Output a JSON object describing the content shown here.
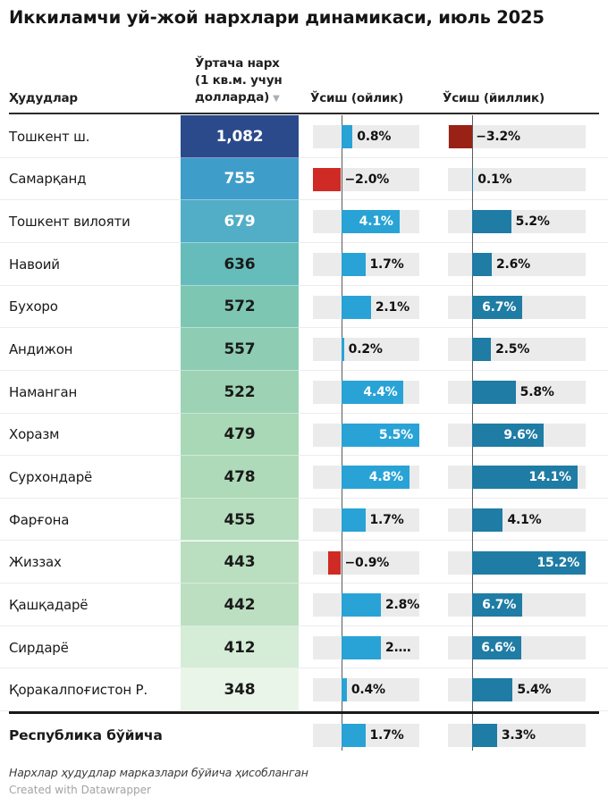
{
  "title": "Иккиламчи уй-жой нархлари динамикаси, июль 2025",
  "header": {
    "region": "Ҳудудлар",
    "price": [
      "Ўртача нарх",
      "(1 кв.м. учун",
      "долларда)"
    ],
    "sort_icon": "▼",
    "monthly": "Ўсиш (ойлик)",
    "yearly": "Ўсиш (йиллик)"
  },
  "colors": {
    "bar_monthly_positive": "#29a3d6",
    "bar_monthly_negative": "#d02a24",
    "bar_yearly_positive": "#1f7ca4",
    "bar_yearly_negative": "#9a2115",
    "bar_track": "#ebebeb",
    "axis_line": "#5c5c5c",
    "price_text_light": "#ffffff",
    "price_text_dark": "#1a1a1a"
  },
  "chart_data": {
    "type": "table",
    "title": "Иккиламчи уй-жой нархлари динамикаси, июль 2025",
    "columns": [
      "Ҳудудлар",
      "Ўртача нарх (1 кв.м. учун долларда)",
      "Ўсиш (ойлик)",
      "Ўсиш (йиллик)"
    ],
    "sorted_by": "Ўртача нарх (1 кв.м. учун долларда)",
    "monthly_axis_range": [
      -2.0,
      5.5
    ],
    "yearly_axis_range": [
      -3.4,
      15.2
    ],
    "rows": [
      {
        "region": "Тошкент ш.",
        "price": "1,082",
        "price_bg": "#2b4a8c",
        "price_text": "light",
        "monthly_pct": 0.8,
        "monthly_label": "0.8%",
        "yearly_pct": -3.2,
        "yearly_label": "−3.2%"
      },
      {
        "region": "Самарқанд",
        "price": "755",
        "price_bg": "#3f9dca",
        "price_text": "light",
        "monthly_pct": -2.0,
        "monthly_label": "−2.0%",
        "yearly_pct": 0.1,
        "yearly_label": "0.1%"
      },
      {
        "region": "Тошкент вилояти",
        "price": "679",
        "price_bg": "#52adc6",
        "price_text": "light",
        "monthly_pct": 4.1,
        "monthly_label": "4.1%",
        "yearly_pct": 5.2,
        "yearly_label": "5.2%"
      },
      {
        "region": "Навоий",
        "price": "636",
        "price_bg": "#66bcba",
        "price_text": "dark",
        "monthly_pct": 1.7,
        "monthly_label": "1.7%",
        "yearly_pct": 2.6,
        "yearly_label": "2.6%"
      },
      {
        "region": "Бухоро",
        "price": "572",
        "price_bg": "#7dc7b2",
        "price_text": "dark",
        "monthly_pct": 2.1,
        "monthly_label": "2.1%",
        "yearly_pct": 6.7,
        "yearly_label": "6.7%"
      },
      {
        "region": "Андижон",
        "price": "557",
        "price_bg": "#8ecdb4",
        "price_text": "dark",
        "monthly_pct": 0.2,
        "monthly_label": "0.2%",
        "yearly_pct": 2.5,
        "yearly_label": "2.5%"
      },
      {
        "region": "Наманган",
        "price": "522",
        "price_bg": "#9dd3b4",
        "price_text": "dark",
        "monthly_pct": 4.4,
        "monthly_label": "4.4%",
        "yearly_pct": 5.8,
        "yearly_label": "5.8%"
      },
      {
        "region": "Хоразм",
        "price": "479",
        "price_bg": "#a9d8b7",
        "price_text": "dark",
        "monthly_pct": 5.5,
        "monthly_label": "5.5%",
        "yearly_pct": 9.6,
        "yearly_label": "9.6%"
      },
      {
        "region": "Сурхондарё",
        "price": "478",
        "price_bg": "#aedab9",
        "price_text": "dark",
        "monthly_pct": 4.8,
        "monthly_label": "4.8%",
        "yearly_pct": 14.1,
        "yearly_label": "14.1%"
      },
      {
        "region": "Фарғона",
        "price": "455",
        "price_bg": "#b6ddbd",
        "price_text": "dark",
        "monthly_pct": 1.7,
        "monthly_label": "1.7%",
        "yearly_pct": 4.1,
        "yearly_label": "4.1%"
      },
      {
        "region": "Жиззах",
        "price": "443",
        "price_bg": "#badfc0",
        "price_text": "dark",
        "monthly_pct": -0.9,
        "monthly_label": "−0.9%",
        "yearly_pct": 15.2,
        "yearly_label": "15.2%"
      },
      {
        "region": "Қашқадарё",
        "price": "442",
        "price_bg": "#bcdfc1",
        "price_text": "dark",
        "monthly_pct": 2.8,
        "monthly_label": "2.8%",
        "yearly_pct": 6.7,
        "yearly_label": "6.7%"
      },
      {
        "region": "Сирдарё",
        "price": "412",
        "price_bg": "#d5ecd7",
        "price_text": "dark",
        "monthly_pct": 2.8,
        "monthly_label": "2.…",
        "yearly_pct": 6.6,
        "yearly_label": "6.6%"
      },
      {
        "region": "Қоракалпоғистон Р.",
        "price": "348",
        "price_bg": "#e9f5e8",
        "price_text": "dark",
        "monthly_pct": 0.4,
        "monthly_label": "0.4%",
        "yearly_pct": 5.4,
        "yearly_label": "5.4%"
      }
    ],
    "total_row": {
      "region": "Республика бўйича",
      "monthly_pct": 1.7,
      "monthly_label": "1.7%",
      "yearly_pct": 3.3,
      "yearly_label": "3.3%"
    }
  },
  "footnote": "Нархлар ҳудудлар марказлари бўйича ҳисобланган",
  "credit": "Created with Datawrapper"
}
